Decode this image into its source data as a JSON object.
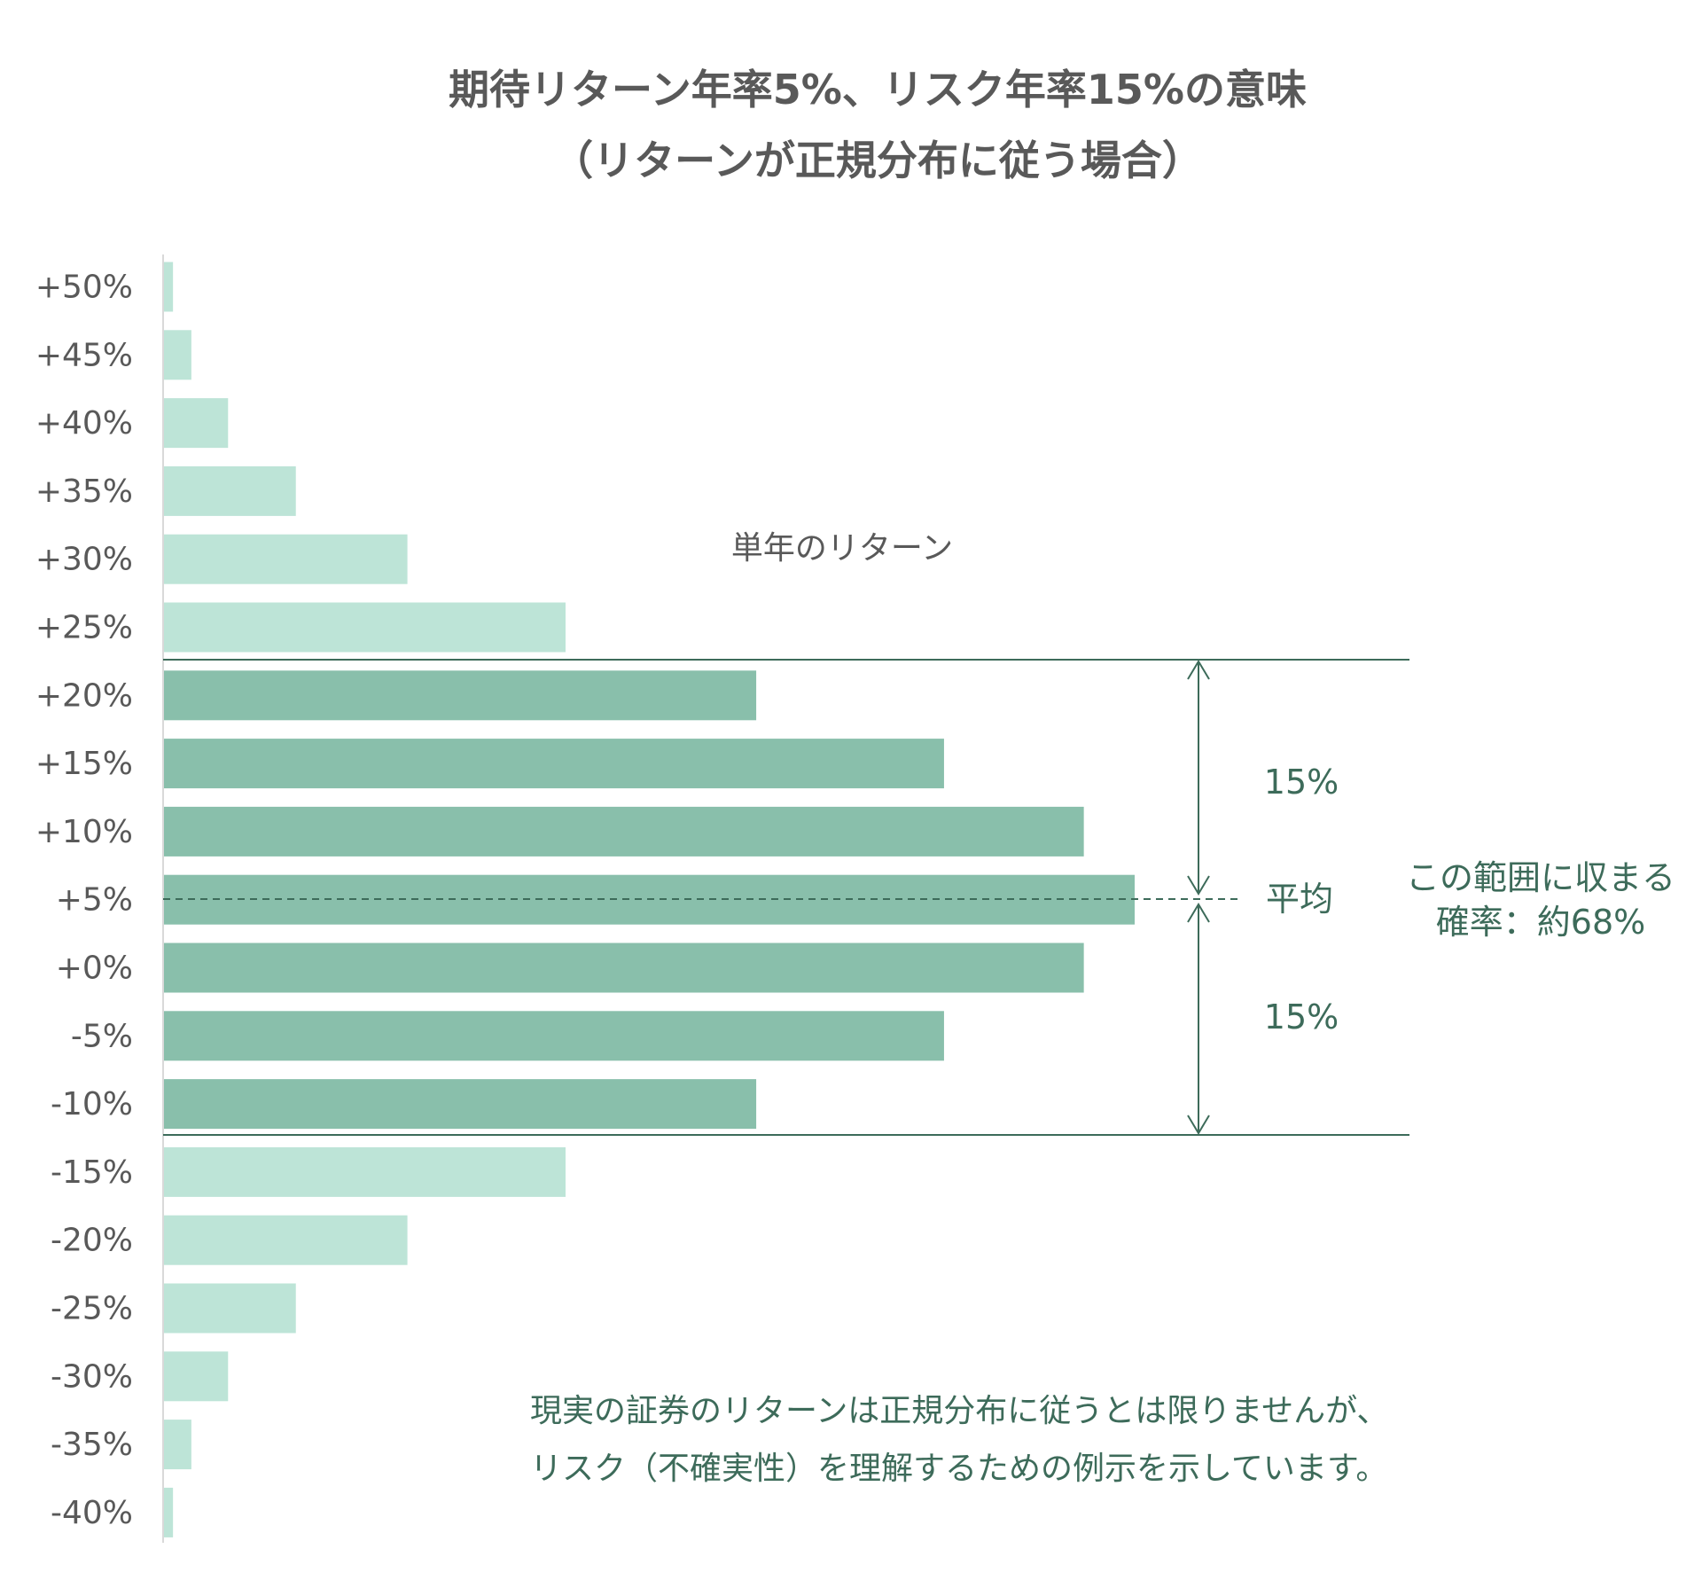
{
  "chart_data": {
    "type": "bar",
    "orientation": "horizontal",
    "title": "期待リターン年率5%、リスク年率15%の意味",
    "subtitle": "（リターンが正規分布に従う場合）",
    "categories": [
      "+50%",
      "+45%",
      "+40%",
      "+35%",
      "+30%",
      "+25%",
      "+20%",
      "+15%",
      "+10%",
      "+5%",
      "+0%",
      "-5%",
      "-10%",
      "-15%",
      "-20%",
      "-25%",
      "-30%",
      "-35%",
      "-40%"
    ],
    "values": [
      0.7,
      2.0,
      4.6,
      9.4,
      17.3,
      28.5,
      42.0,
      55.3,
      65.2,
      68.8,
      65.2,
      55.3,
      42.0,
      28.5,
      17.3,
      9.4,
      4.6,
      2.0,
      0.7
    ],
    "highlight_range": [
      "+20%",
      "-10%"
    ],
    "colors": {
      "outer": "#bde4d7",
      "inner": "#89bfab",
      "line": "#3d6b5a",
      "text": "#595959",
      "accent_text": "#3d6b5a"
    },
    "annotations": {
      "series_label": "単年のリターン",
      "upper_band": "15%",
      "lower_band": "15%",
      "mean_label": "平均",
      "range_line1": "この範囲に収まる",
      "range_line2": "確率：約68%",
      "note_line1": "現実の証券のリターンは正規分布に従うとは限りませんが、",
      "note_line2": "リスク（不確実性）を理解するための例示を示しています。"
    }
  }
}
